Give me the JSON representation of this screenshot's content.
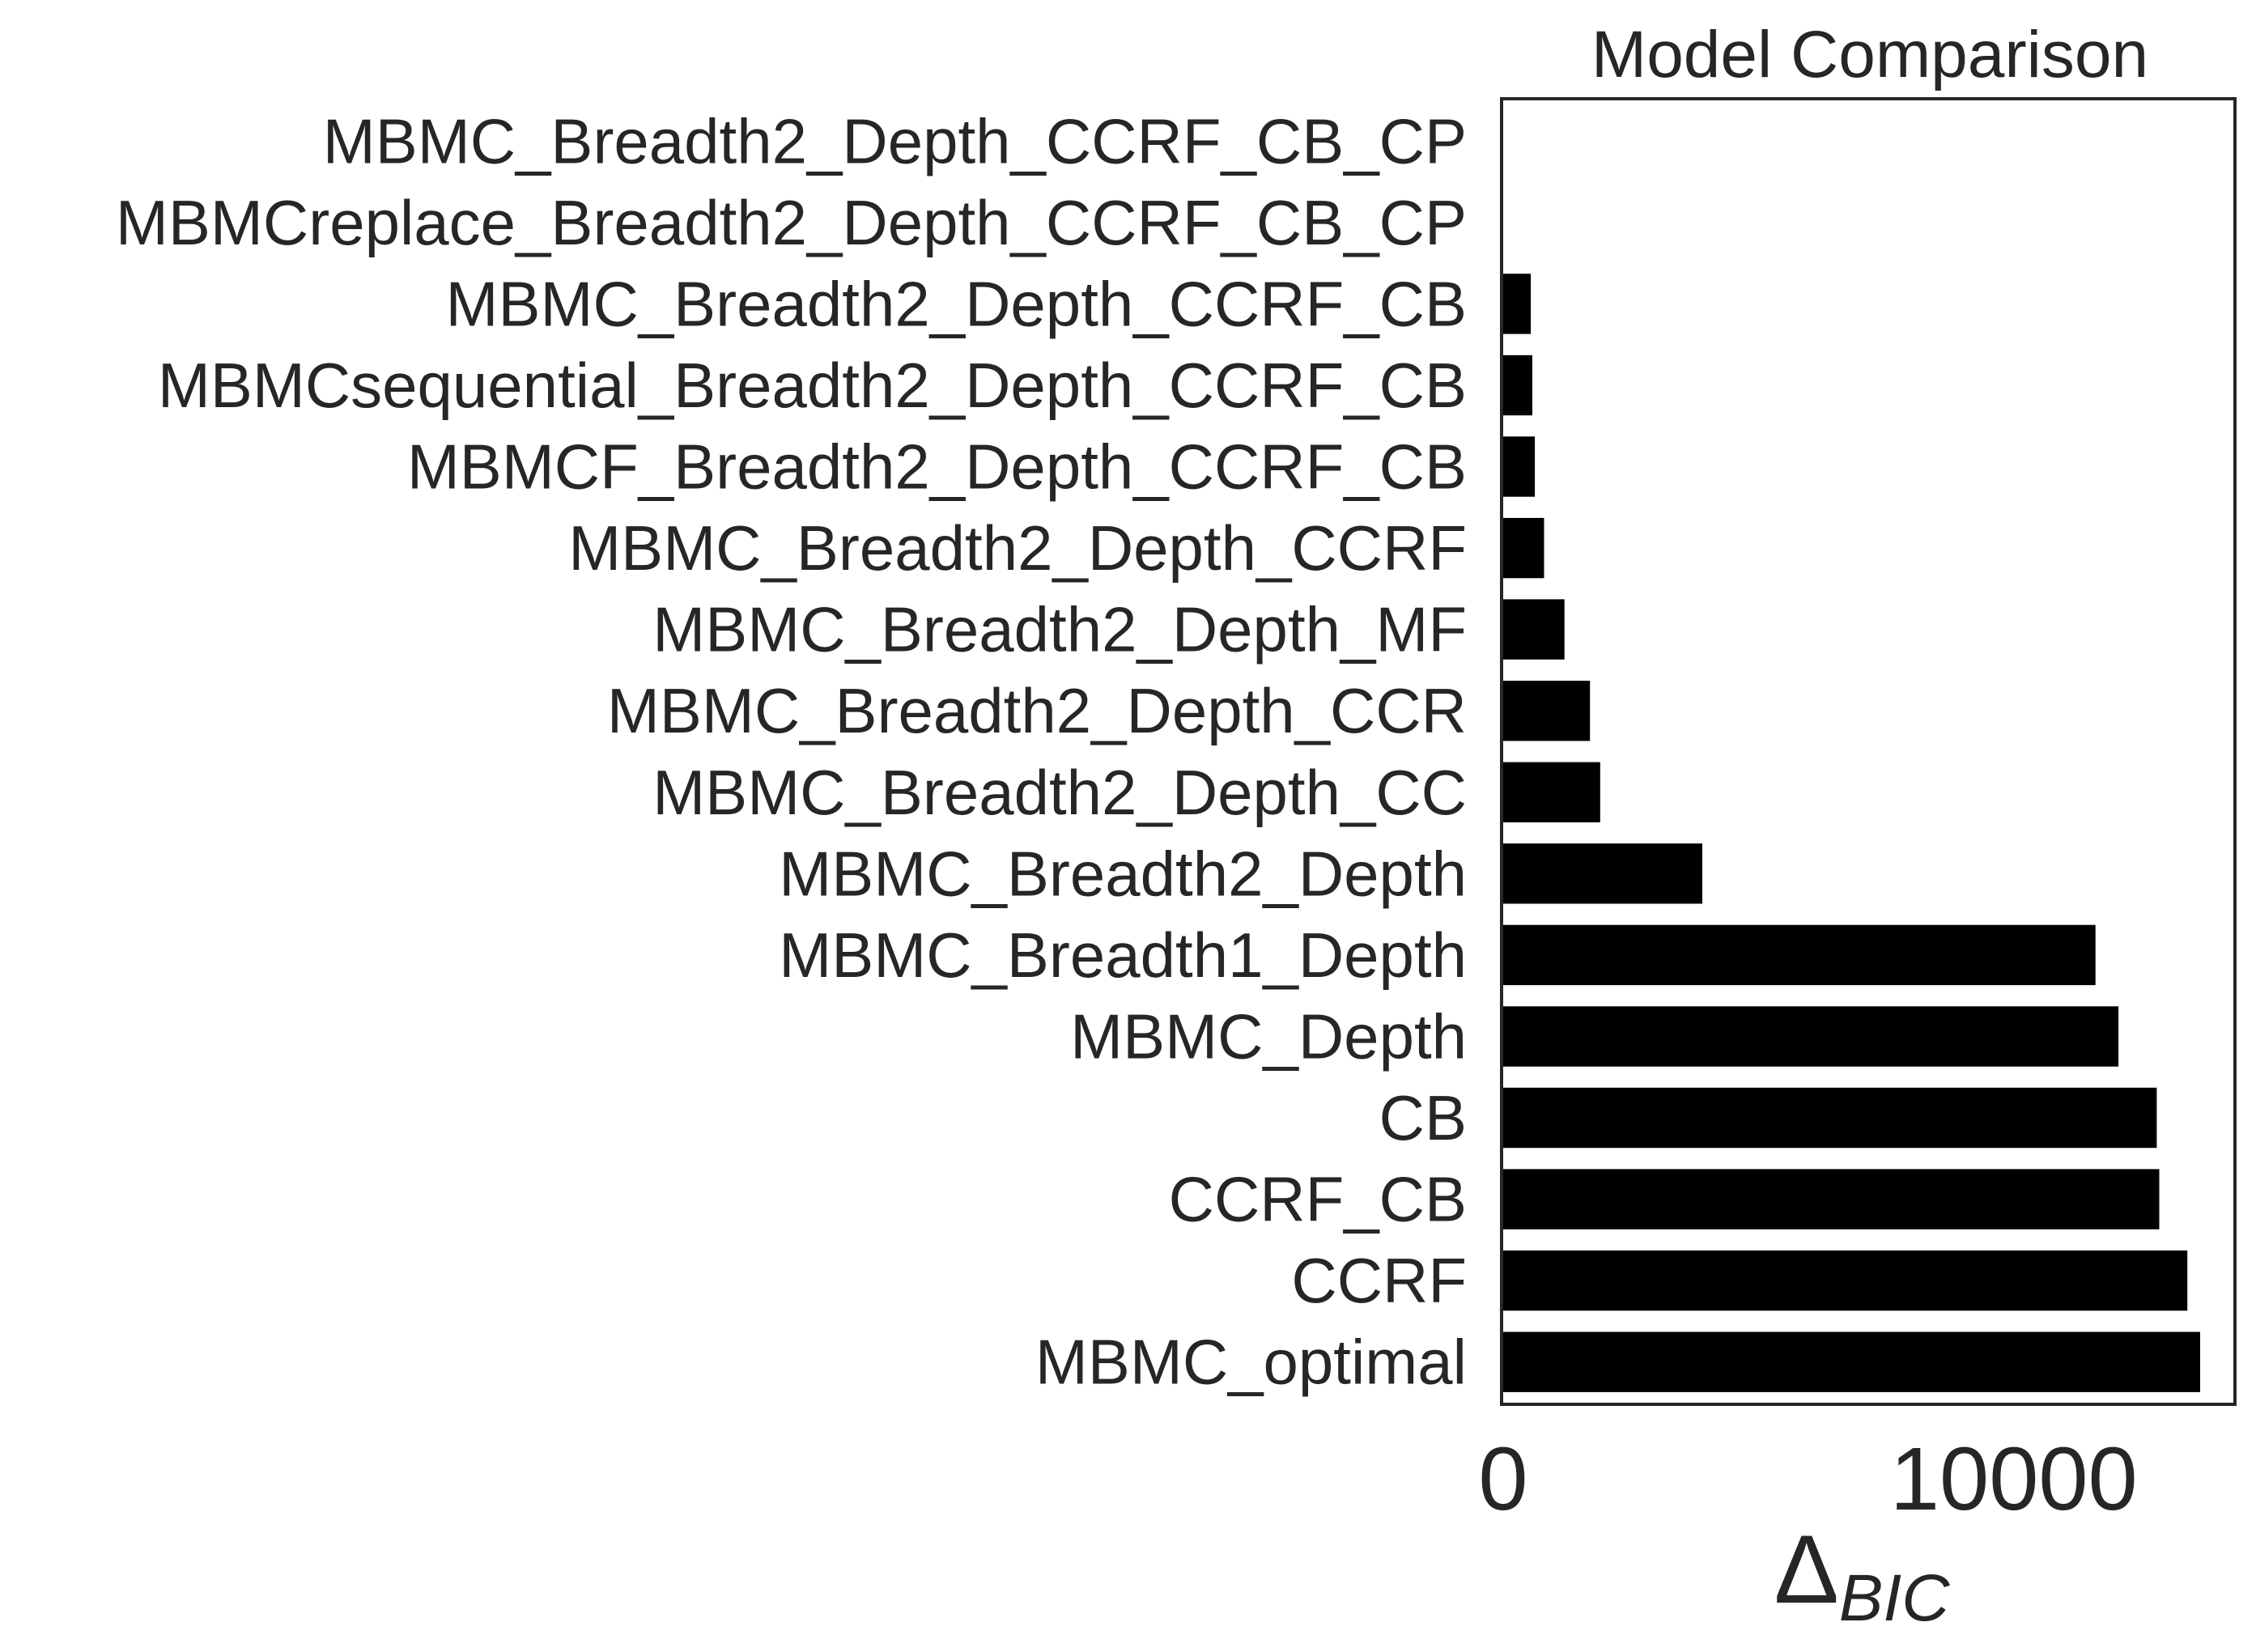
{
  "chart_data": {
    "type": "bar",
    "orientation": "horizontal",
    "title": "Model Comparison",
    "xlabel_symbol": "Δ",
    "xlabel_subscript": "BIC",
    "ylabel": "",
    "xlim": [
      0,
      14300
    ],
    "x_ticks": [
      0,
      10000
    ],
    "x_tick_labels": [
      "0",
      "10000"
    ],
    "grid": false,
    "bar_color": "#000000",
    "categories": [
      "MBMC_Breadth2_Depth_CCRF_CB_CP",
      "MBMCreplace_Breadth2_Depth_CCRF_CB_CP",
      "MBMC_Breadth2_Depth_CCRF_CB",
      "MBMCsequential_Breadth2_Depth_CCRF_CB",
      "MBMCF_Breadth2_Depth_CCRF_CB",
      "MBMC_Breadth2_Depth_CCRF",
      "MBMC_Breadth2_Depth_MF",
      "MBMC_Breadth2_Depth_CCR",
      "MBMC_Breadth2_Depth_CC",
      "MBMC_Breadth2_Depth",
      "MBMC_Breadth1_Depth",
      "MBMC_Depth",
      "CB",
      "CCRF_CB",
      "CCRF",
      "MBMC_optimal"
    ],
    "values": [
      0,
      0,
      540,
      570,
      620,
      800,
      1200,
      1700,
      1900,
      3900,
      11600,
      12050,
      12800,
      12850,
      13400,
      13650
    ]
  }
}
